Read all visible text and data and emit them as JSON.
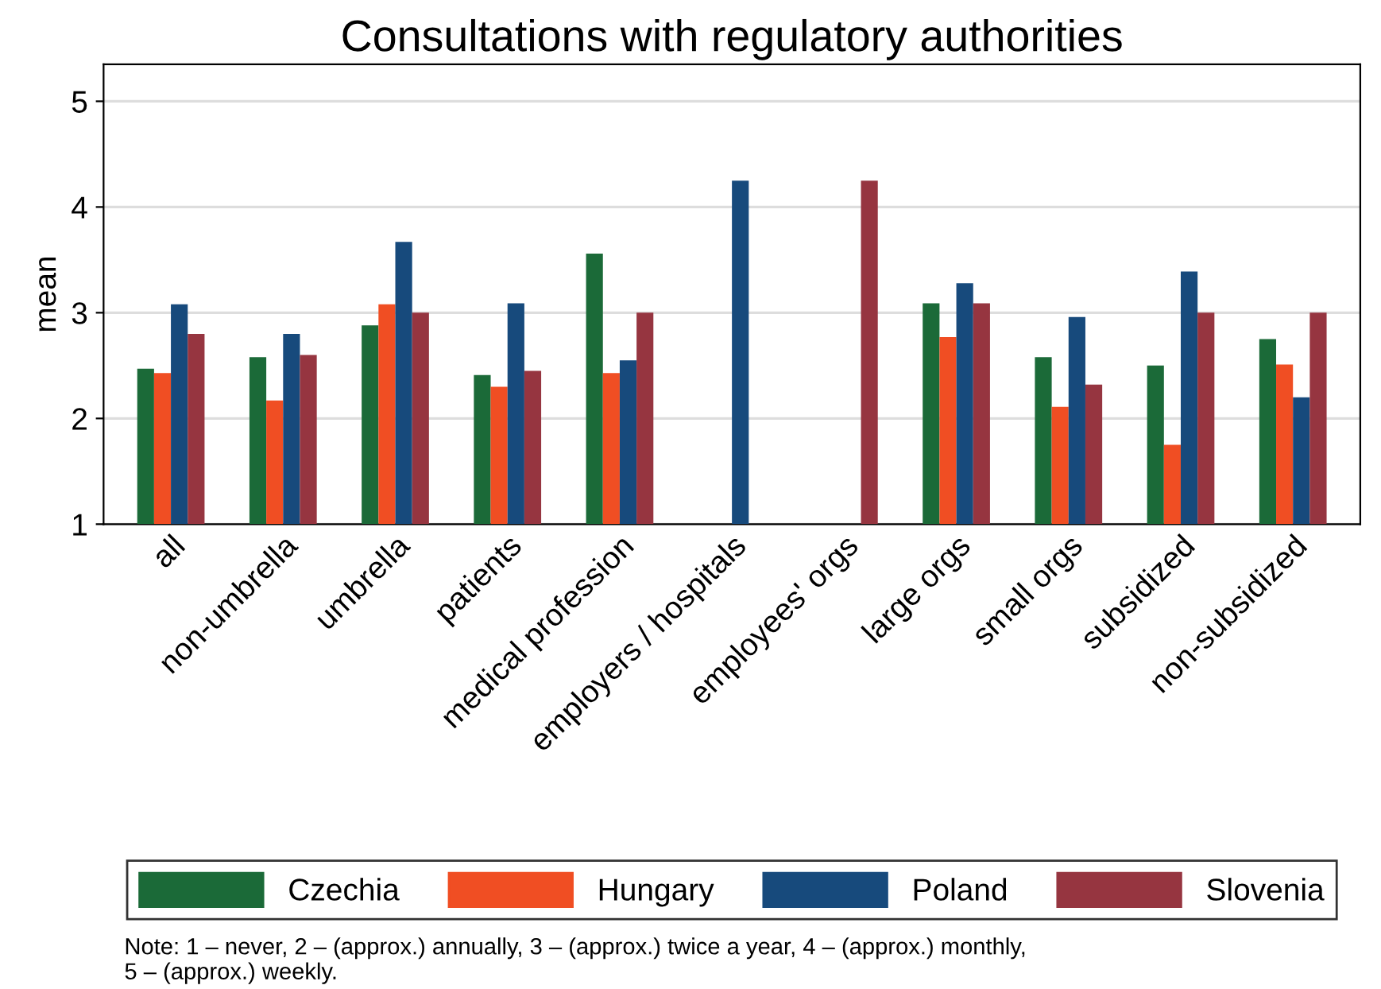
{
  "chart_data": {
    "type": "bar",
    "title": "Consultations with regulatory authorities",
    "ylabel": "mean",
    "categories": [
      "all",
      "non-umbrella",
      "umbrella",
      "patients",
      "medical profession",
      "employers / hospitals",
      "employees' orgs",
      "large orgs",
      "small orgs",
      "subsidized",
      "non-subsidized"
    ],
    "series": [
      {
        "name": "Czechia",
        "color": "#1b6a38",
        "values": [
          2.47,
          2.58,
          2.88,
          2.41,
          3.56,
          null,
          null,
          3.09,
          2.58,
          2.5,
          2.75
        ]
      },
      {
        "name": "Hungary",
        "color": "#f04e23",
        "values": [
          2.43,
          2.17,
          3.08,
          2.3,
          2.43,
          null,
          null,
          2.77,
          2.11,
          1.75,
          2.51
        ]
      },
      {
        "name": "Poland",
        "color": "#174a7c",
        "values": [
          3.08,
          2.8,
          3.67,
          3.09,
          2.55,
          4.25,
          null,
          3.28,
          2.96,
          3.39,
          2.2
        ]
      },
      {
        "name": "Slovenia",
        "color": "#963540",
        "values": [
          2.8,
          2.6,
          3.0,
          2.45,
          3.0,
          null,
          4.25,
          3.09,
          2.32,
          3.0,
          3.0
        ]
      }
    ],
    "ylim": [
      1,
      5.35
    ],
    "yticks": [
      1,
      2,
      3,
      4,
      5
    ],
    "grid": "y",
    "legend": "bottom",
    "annotations": [
      "Note: 1 – never, 2 – (approx.) annually, 3 – (approx.) twice a year, 4 – (approx.) monthly,\n5 – (approx.) weekly."
    ]
  }
}
